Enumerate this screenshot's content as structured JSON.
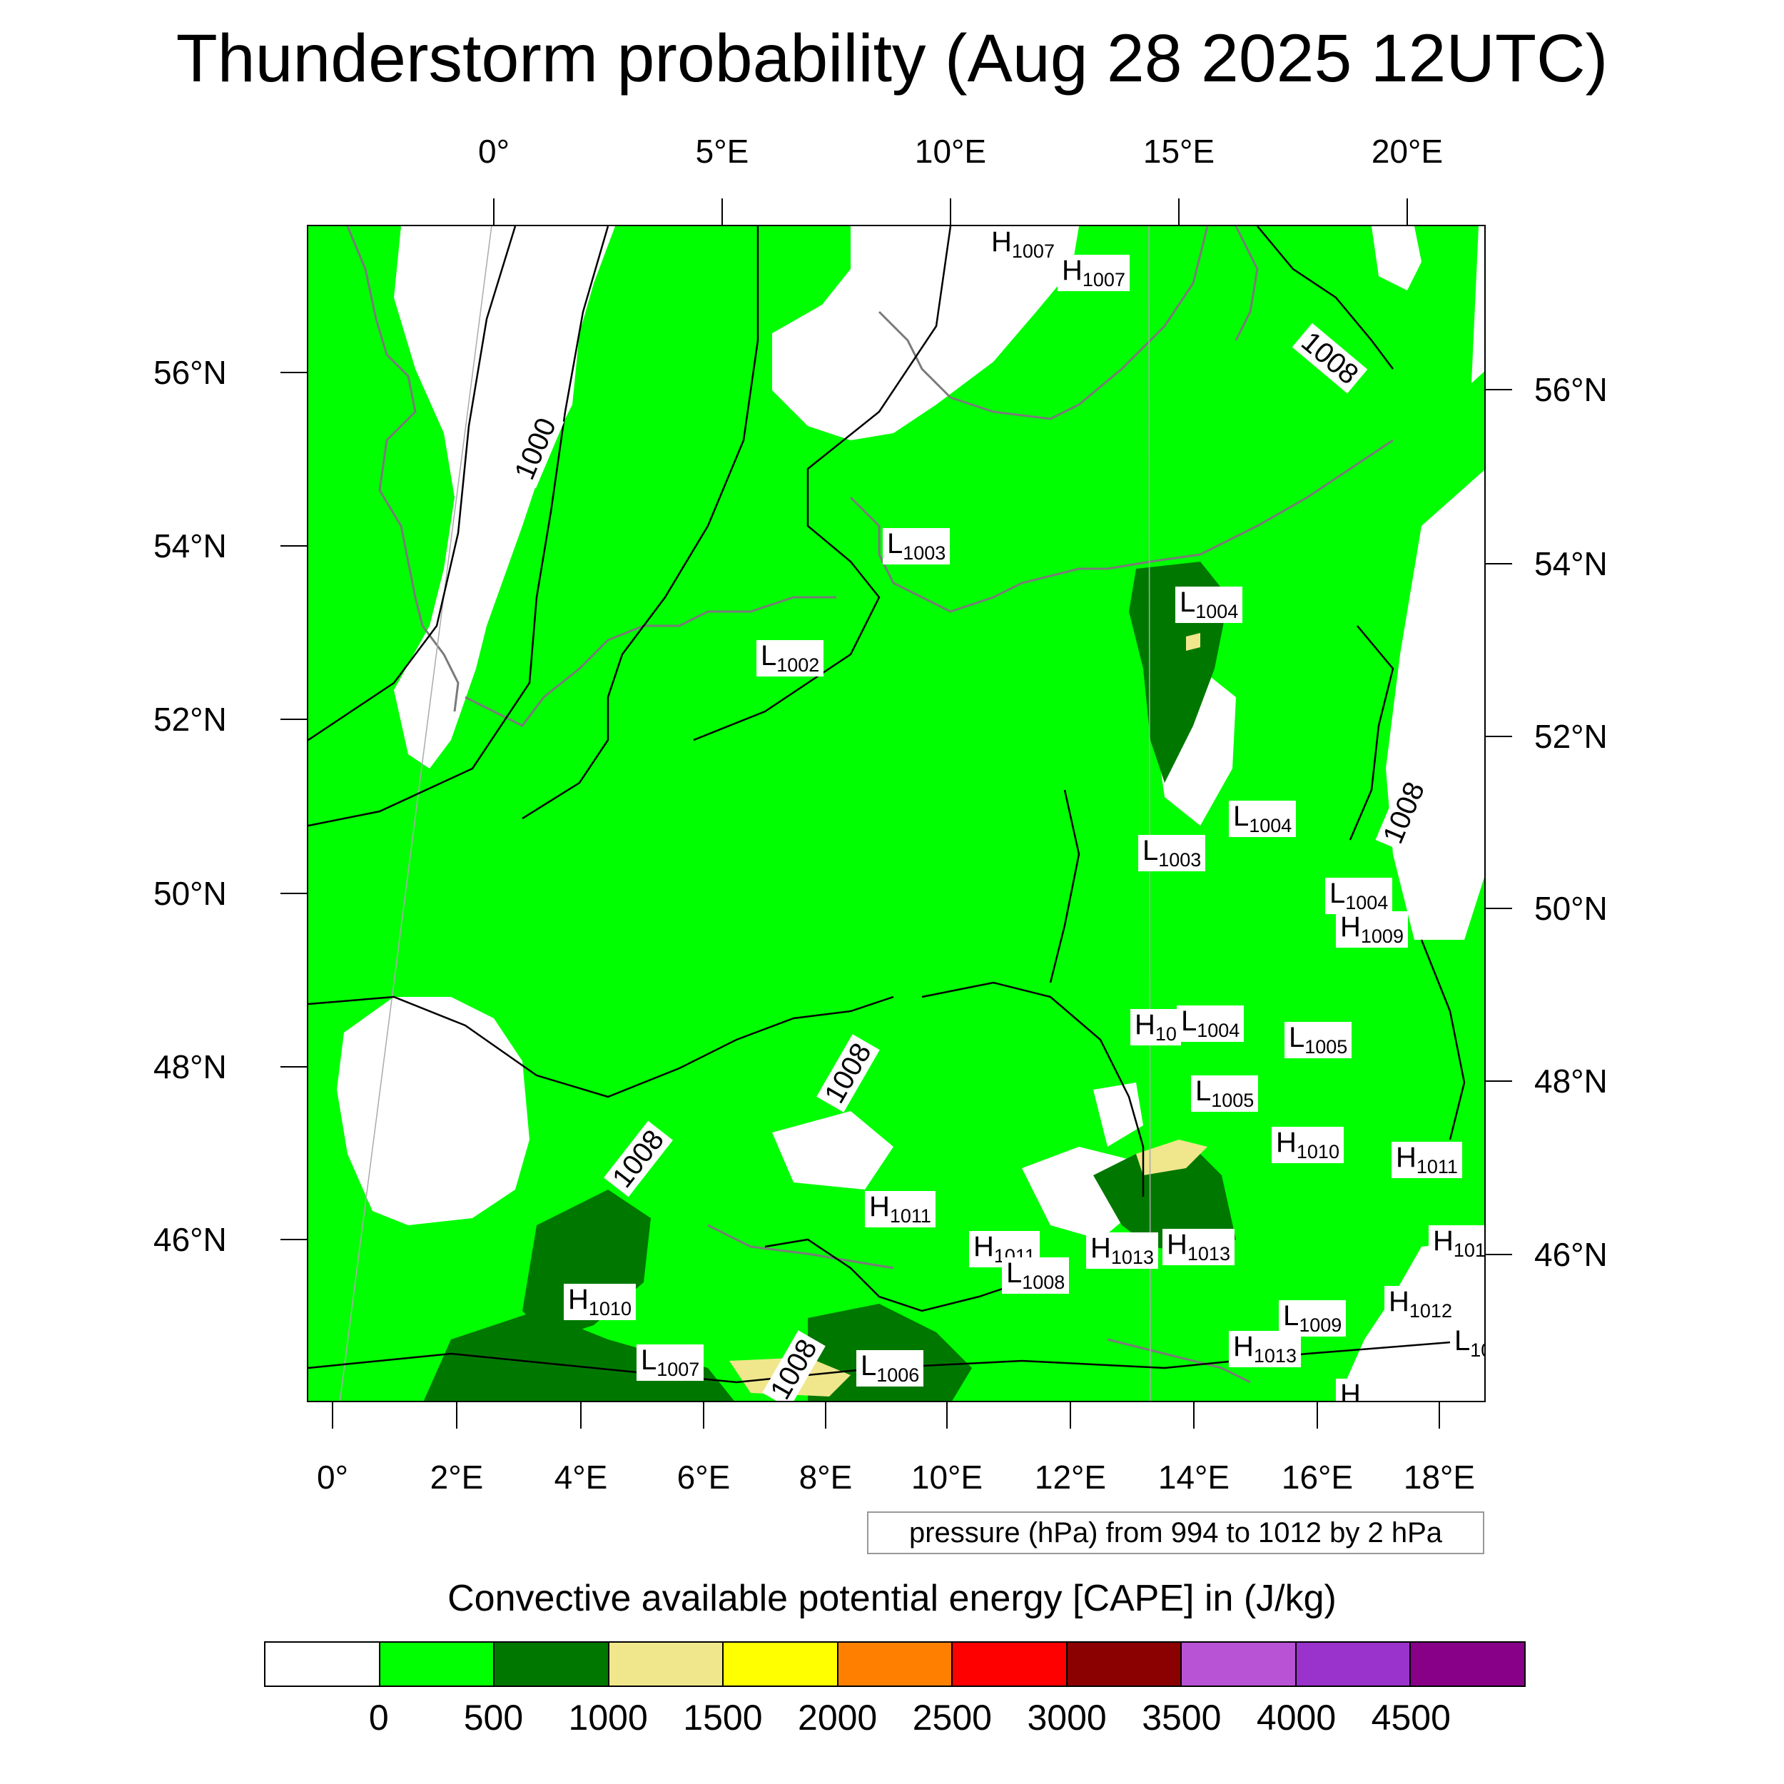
{
  "title": "Thunderstorm probability (Aug 28 2025 12UTC)",
  "top_lon_labels": [
    "0°",
    "5°E",
    "10°E",
    "15°E",
    "20°E"
  ],
  "bottom_lon_labels": [
    "0°",
    "2°E",
    "4°E",
    "6°E",
    "8°E",
    "10°E",
    "12°E",
    "14°E",
    "16°E",
    "18°E"
  ],
  "left_lat_labels": [
    "56°N",
    "54°N",
    "52°N",
    "50°N",
    "48°N",
    "46°N"
  ],
  "right_lat_labels": [
    "56°N",
    "54°N",
    "52°N",
    "50°N",
    "48°N",
    "46°N"
  ],
  "isobar_labels": [
    "1000",
    "1008",
    "1008",
    "1008",
    "1008",
    "1008"
  ],
  "pressure_centers": [
    {
      "type": "H",
      "value": "1007"
    },
    {
      "type": "H",
      "value": "1007"
    },
    {
      "type": "L",
      "value": "1003"
    },
    {
      "type": "L",
      "value": "1002"
    },
    {
      "type": "L",
      "value": "1004"
    },
    {
      "type": "L",
      "value": "1004"
    },
    {
      "type": "L",
      "value": "1003"
    },
    {
      "type": "L",
      "value": "1004"
    },
    {
      "type": "H",
      "value": "1009"
    },
    {
      "type": "H",
      "value": "10"
    },
    {
      "type": "L",
      "value": "1004"
    },
    {
      "type": "L",
      "value": "1005"
    },
    {
      "type": "L",
      "value": "1005"
    },
    {
      "type": "H",
      "value": "1010"
    },
    {
      "type": "H",
      "value": "1011"
    },
    {
      "type": "H",
      "value": "1011"
    },
    {
      "type": "H",
      "value": "101"
    },
    {
      "type": "H",
      "value": "1011"
    },
    {
      "type": "L",
      "value": "1008"
    },
    {
      "type": "H",
      "value": "1013"
    },
    {
      "type": "H",
      "value": "1013"
    },
    {
      "type": "H",
      "value": "1010"
    },
    {
      "type": "H",
      "value": "1012"
    },
    {
      "type": "L",
      "value": "1009"
    },
    {
      "type": "H",
      "value": "1013"
    },
    {
      "type": "L",
      "value": "1007"
    },
    {
      "type": "L",
      "value": "1006"
    },
    {
      "type": "L",
      "value": "10"
    },
    {
      "type": "H",
      "value": ""
    }
  ],
  "pressure_note": "pressure (hPa) from 994 to 1012 by 2 hPa",
  "legend": {
    "title": "Convective available potential energy [CAPE] in (J/kg)",
    "colors": [
      "#ffffff",
      "#00ff00",
      "#007800",
      "#f0e68c",
      "#ffff00",
      "#ff8000",
      "#ff0000",
      "#8b0000",
      "#b853d6",
      "#9933cc",
      "#880088"
    ],
    "ticks": [
      "0",
      "500",
      "1000",
      "1500",
      "2000",
      "2500",
      "3000",
      "3500",
      "4000",
      "4500"
    ]
  },
  "field_colors": {
    "low": "#ffffff",
    "green": "#00ff00",
    "dark_green": "#007800",
    "khaki": "#f0e68c",
    "coast": "#7a7a7a",
    "isobar": "#000000"
  }
}
